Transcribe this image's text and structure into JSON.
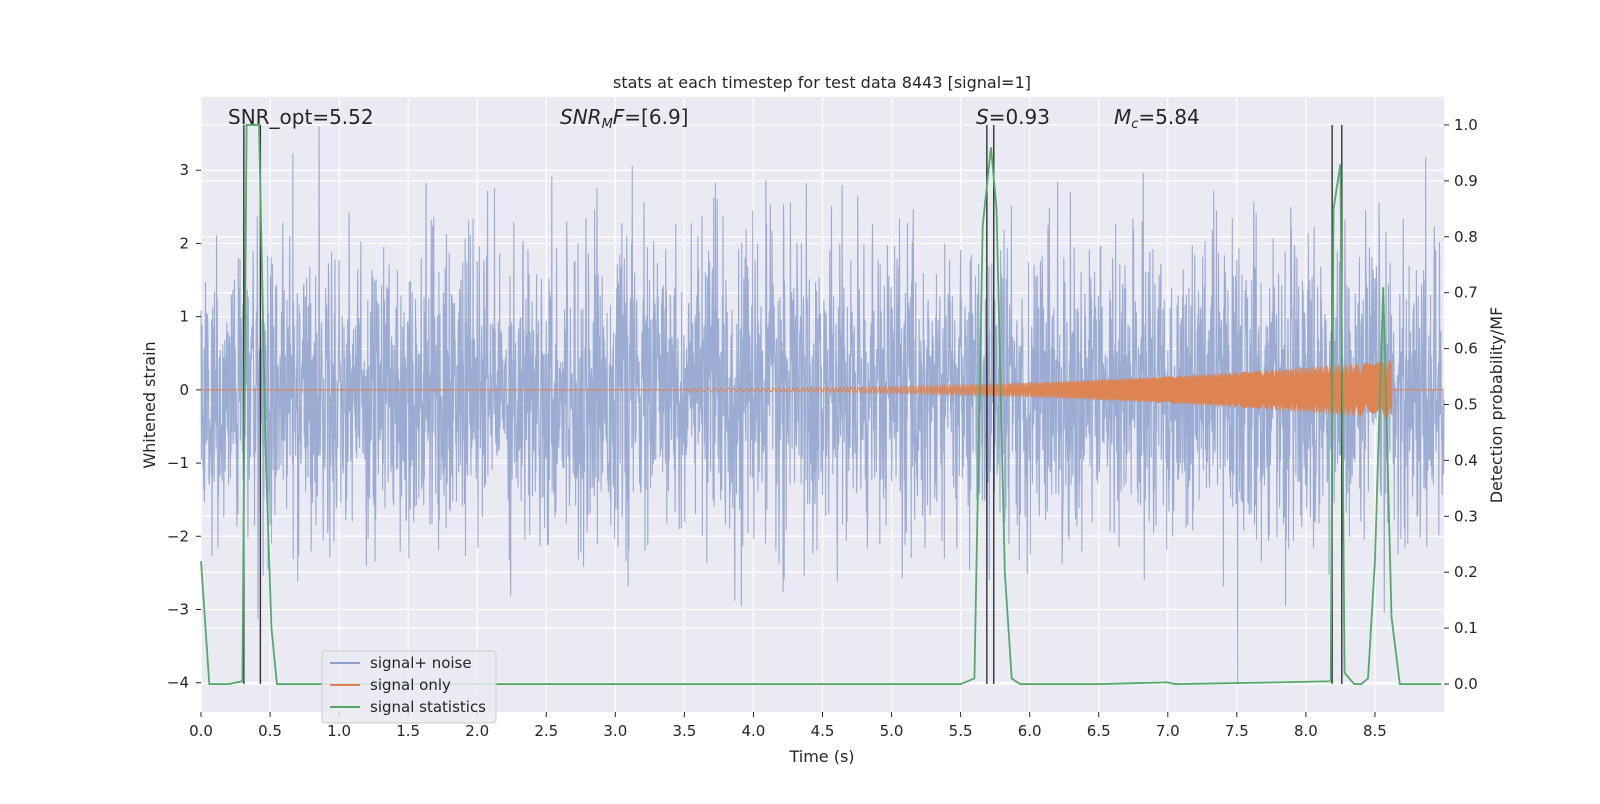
{
  "chart_data": {
    "type": "line",
    "title": "stats at each timestep for test data 8443 [signal=1]",
    "xlabel": "Time (s)",
    "ylabel": "Whitened strain",
    "ylabel_right": "Detection probability/MF",
    "xlim": [
      0,
      9.0
    ],
    "ylim": [
      -4.4,
      4.0
    ],
    "ylim_right": [
      -0.05,
      1.05
    ],
    "x_ticks": [
      0.0,
      0.5,
      1.0,
      1.5,
      2.0,
      2.5,
      3.0,
      3.5,
      4.0,
      4.5,
      5.0,
      5.5,
      6.0,
      6.5,
      7.0,
      7.5,
      8.0,
      8.5
    ],
    "x_tick_labels": [
      "0.0",
      "0.5",
      "1.0",
      "1.5",
      "2.0",
      "2.5",
      "3.0",
      "3.5",
      "4.0",
      "4.5",
      "5.0",
      "5.5",
      "6.0",
      "6.5",
      "7.0",
      "7.5",
      "8.0",
      "8.5"
    ],
    "y_ticks": [
      -4,
      -3,
      -2,
      -1,
      0,
      1,
      2,
      3
    ],
    "y_tick_labels": [
      "−4",
      "−3",
      "−2",
      "−1",
      "0",
      "1",
      "2",
      "3"
    ],
    "y_ticks_right": [
      0.0,
      0.1,
      0.2,
      0.3,
      0.4,
      0.5,
      0.6,
      0.7,
      0.8,
      0.9,
      1.0
    ],
    "y_tick_labels_right": [
      "0.0",
      "0.1",
      "0.2",
      "0.3",
      "0.4",
      "0.5",
      "0.6",
      "0.7",
      "0.8",
      "0.9",
      "1.0"
    ],
    "grid": true,
    "legend_position": "lower-left",
    "annotations": [
      {
        "id": "snr-opt",
        "text": "SNR_opt=5.52",
        "x": 0.19
      },
      {
        "id": "snr-mf",
        "text": "=[6.9]",
        "x": 2.6,
        "math_main": "SNR",
        "math_sub": "M",
        "math_tail": "F"
      },
      {
        "id": "s-value",
        "text": "=0.93",
        "x": 5.6,
        "math_main": "S"
      },
      {
        "id": "mc-value",
        "text": "=5.84",
        "x": 6.6,
        "math_main": "M",
        "math_sub": "c"
      }
    ],
    "series": [
      {
        "name": "signal+ noise",
        "color": "#8da0cb",
        "kind": "noise",
        "envelope_upper": 3.6,
        "envelope_lower": -4.0,
        "typical_amplitude": 1.3
      },
      {
        "name": "signal only",
        "color": "#dd8452",
        "kind": "chirp",
        "chirp_start": 3.5,
        "chirp_end": 8.62,
        "amplitude_start": 0.02,
        "amplitude_end": 0.4,
        "after_merger_value": 0.0
      },
      {
        "name": "signal statistics",
        "color": "#55a868",
        "axis": "right",
        "x": [
          0.0,
          0.06,
          0.2,
          0.3,
          0.33,
          0.37,
          0.42,
          0.47,
          0.51,
          0.55,
          0.6,
          1.0,
          5.5,
          5.6,
          5.66,
          5.72,
          5.76,
          5.82,
          5.87,
          5.93,
          6.5,
          7.0,
          7.05,
          7.8,
          8.18,
          8.2,
          8.25,
          8.28,
          8.35,
          8.4,
          8.45,
          8.5,
          8.56,
          8.62,
          8.68,
          8.8,
          8.98
        ],
        "y": [
          0.22,
          0.0,
          0.0,
          0.005,
          1.0,
          1.0,
          1.0,
          0.4,
          0.1,
          0.0,
          0.0,
          0.0,
          0.0,
          0.01,
          0.82,
          0.96,
          0.85,
          0.2,
          0.01,
          0.0,
          0.0,
          0.003,
          0.0,
          0.003,
          0.005,
          0.85,
          0.93,
          0.02,
          0.0,
          0.0,
          0.01,
          0.22,
          0.71,
          0.12,
          0.0,
          0.0,
          0.0
        ]
      }
    ],
    "vertical_markers": {
      "color": "#333333",
      "x": [
        0.31,
        0.43,
        5.69,
        5.74,
        8.19,
        8.26
      ],
      "y_top": 1.0,
      "y_bottom": 0.0,
      "y_axis": "right"
    }
  }
}
